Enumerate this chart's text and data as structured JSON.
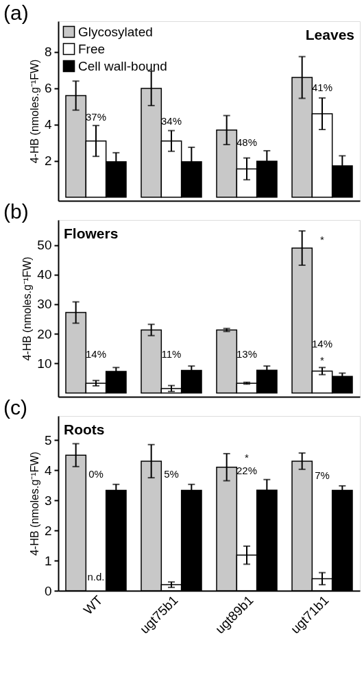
{
  "chart_data": [
    {
      "type": "bar",
      "title": "(a)",
      "ylabel": "4-HB (nmoles.g⁻¹FW)",
      "categories": [
        null,
        null,
        null,
        null
      ],
      "series": [
        {
          "name": "Glycosylated",
          "color": "#c8c8c8",
          "values": [
            5.6,
            6.0,
            3.7,
            6.6
          ],
          "errors": [
            0.8,
            0.95,
            0.8,
            1.15
          ]
        },
        {
          "name": "Free",
          "color": "#ffffff",
          "values": [
            3.1,
            3.1,
            1.56,
            4.6
          ],
          "errors": [
            0.85,
            0.57,
            0.6,
            0.87
          ]
        },
        {
          "name": "Cell wall-bound",
          "color": "#000000",
          "values": [
            1.95,
            1.95,
            1.98,
            1.73
          ],
          "errors": [
            0.5,
            0.8,
            0.58,
            0.55
          ]
        }
      ],
      "ylim": [
        -0.2,
        9.7
      ],
      "yticks": [
        2,
        4,
        6,
        8
      ],
      "legend": "top left",
      "tick_labels": "y",
      "annotations": [
        "Leaves",
        "37%",
        "34%",
        "48%",
        "41%"
      ]
    },
    {
      "type": "bar",
      "title": "(b)",
      "ylabel": "4-HB (nmoles.g⁻¹FW)",
      "categories": [
        null,
        null,
        null,
        null
      ],
      "series": [
        {
          "color": "#c8c8c8",
          "values": [
            27.2,
            21.3,
            21.3,
            49.0
          ],
          "errors": [
            3.6,
            1.9,
            0.5,
            5.8
          ]
        },
        {
          "color": "#ffffff",
          "values": [
            3.3,
            1.5,
            3.3,
            7.4
          ],
          "errors": [
            0.9,
            1.0,
            0.3,
            1.2
          ]
        },
        {
          "color": "#000000",
          "values": [
            7.3,
            7.6,
            7.7,
            5.6
          ],
          "errors": [
            1.3,
            1.5,
            1.4,
            1.1
          ]
        }
      ],
      "ylim": [
        -1.3,
        58.5
      ],
      "yticks": [
        10,
        20,
        30,
        40,
        50
      ],
      "tick_labels": "y",
      "annotations": [
        "Flowers",
        "14%",
        "11%",
        "13%",
        "14%",
        "*",
        "*"
      ]
    },
    {
      "type": "bar",
      "title": "(c)",
      "ylabel": "4-HB (nmoles.g⁻¹FW)",
      "categories": [
        "WT",
        "ugt75b1",
        "ugt89b1",
        "ugt71b1"
      ],
      "series": [
        {
          "color": "#c8c8c8",
          "values": [
            4.5,
            4.3,
            4.1,
            4.3
          ],
          "errors": [
            0.38,
            0.55,
            0.45,
            0.27
          ]
        },
        {
          "color": "#ffffff",
          "values": [
            null,
            0.2,
            1.18,
            0.4
          ],
          "errors": [
            null,
            0.09,
            0.3,
            0.2
          ]
        },
        {
          "color": "#000000",
          "values": [
            3.33,
            3.33,
            3.34,
            3.33
          ],
          "errors": [
            0.2,
            0.2,
            0.35,
            0.15
          ]
        }
      ],
      "ylim": [
        0,
        5.8
      ],
      "yticks": [
        0,
        1,
        2,
        3,
        4,
        5
      ],
      "annotations": [
        "Roots",
        "n.d.",
        "0%",
        "5%",
        "22%",
        "*",
        "7%"
      ]
    }
  ]
}
